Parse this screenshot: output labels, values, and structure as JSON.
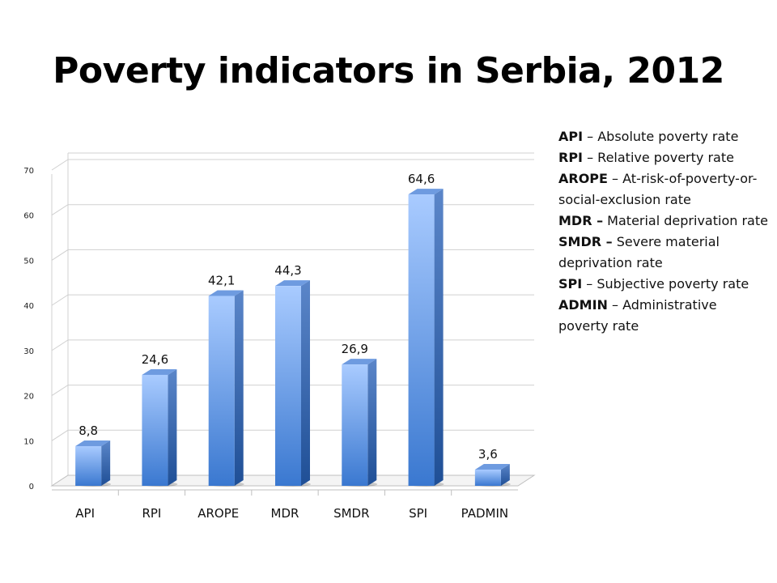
{
  "chart_data": {
    "type": "bar",
    "title": "Poverty indicators in Serbia, 2012",
    "categories": [
      "API",
      "RPI",
      "AROPE",
      "MDR",
      "SMDR",
      "SPI",
      "PADMIN"
    ],
    "values": [
      8.8,
      24.6,
      42.1,
      44.3,
      26.9,
      64.6,
      3.6
    ],
    "value_labels": [
      "8,8",
      "24,6",
      "42,1",
      "44,3",
      "26,9",
      "64,6",
      "3,6"
    ],
    "xlabel": "",
    "ylabel": "",
    "ylim": [
      0,
      70
    ],
    "yticks": [
      0,
      10,
      20,
      30,
      40,
      50,
      60,
      70
    ],
    "grid": true,
    "style": "3d-column",
    "colors": {
      "bar_light": "#a6c8ff",
      "bar_dark": "#3c7bd3",
      "side": "#2f5fa3",
      "top": "#6f9be0"
    }
  },
  "legend": [
    {
      "abbr": "API",
      "desc": " – Absolute poverty rate"
    },
    {
      "abbr": "RPI",
      "desc": " – Relative poverty rate"
    },
    {
      "abbr": "AROPE",
      "desc": " – At-risk-of-poverty-or-social-exclusion rate"
    },
    {
      "abbr": "MDR –",
      "desc": " Material deprivation rate"
    },
    {
      "abbr": "SMDR –",
      "desc": " Severe material deprivation rate"
    },
    {
      "abbr": "SPI",
      "desc": " – Subjective poverty rate"
    },
    {
      "abbr": "ADMIN",
      "desc": " – Administrative poverty rate"
    }
  ]
}
